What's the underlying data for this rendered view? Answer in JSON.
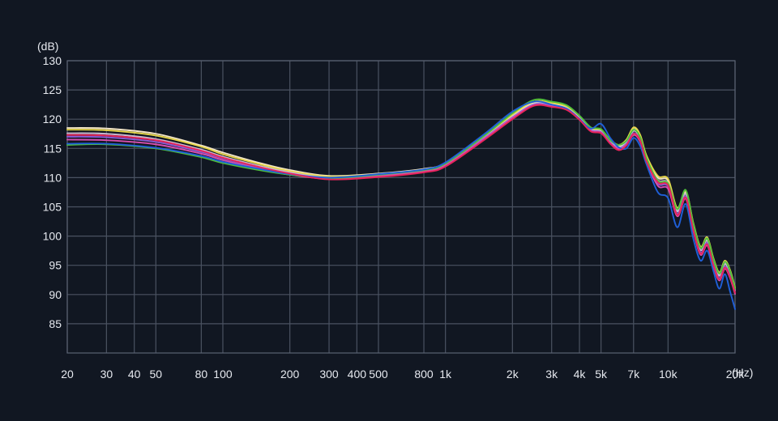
{
  "chart_data": {
    "type": "line",
    "title": "",
    "ylabel": "(dB)",
    "xlabel": "(Hz)",
    "x_scale": "log",
    "xlim": [
      20,
      20000
    ],
    "ylim": [
      80,
      130
    ],
    "grid": true,
    "y_ticks": [
      85,
      90,
      95,
      100,
      105,
      110,
      115,
      120,
      125,
      130
    ],
    "y_tick_labels": [
      "85",
      "90",
      "95",
      "100",
      "105",
      "110",
      "115",
      "120",
      "125",
      "130"
    ],
    "x_ticks": [
      20,
      30,
      40,
      50,
      80,
      100,
      200,
      300,
      400,
      500,
      800,
      1000,
      2000,
      3000,
      4000,
      5000,
      7000,
      10000,
      20000
    ],
    "x_tick_labels": [
      "20",
      "30",
      "40",
      "50",
      "80",
      "100",
      "200",
      "300",
      "400",
      "500",
      "800",
      "1k",
      "2k",
      "3k",
      "4k",
      "5k",
      "7k",
      "10k",
      "20k"
    ],
    "x": [
      20,
      30,
      50,
      80,
      100,
      150,
      200,
      300,
      500,
      800,
      1000,
      1500,
      2000,
      2500,
      3000,
      3500,
      4000,
      4500,
      5000,
      5500,
      6000,
      6500,
      7000,
      7500,
      8000,
      9000,
      10000,
      11000,
      12000,
      13000,
      14000,
      15000,
      16000,
      17000,
      18000,
      19000,
      20000
    ],
    "series": [
      {
        "color": "#f3e6c6",
        "values": [
          118.5,
          118.4,
          117.5,
          115.5,
          114.3,
          112.4,
          111.3,
          110.3,
          110.7,
          111.5,
          112.5,
          117.0,
          120.5,
          122.8,
          122.6,
          122.0,
          120.3,
          118.3,
          118.0,
          116.3,
          115.4,
          116.2,
          118.3,
          117.0,
          113.5,
          110.0,
          109.5,
          104.5,
          107.5,
          102.0,
          98.0,
          99.5,
          96.0,
          93.5,
          95.5,
          94.0,
          91.0
        ]
      },
      {
        "color": "#e8d84a",
        "values": [
          118.2,
          118.1,
          117.2,
          115.3,
          114.0,
          112.2,
          111.1,
          110.2,
          110.6,
          111.4,
          112.4,
          117.0,
          120.8,
          123.0,
          122.8,
          122.2,
          120.5,
          118.5,
          118.2,
          116.5,
          115.6,
          116.5,
          118.6,
          117.3,
          113.8,
          110.3,
          109.8,
          104.8,
          107.8,
          102.2,
          98.2,
          99.8,
          96.2,
          93.8,
          95.8,
          94.2,
          91.2
        ]
      },
      {
        "color": "#c8b8d0",
        "values": [
          117.6,
          117.5,
          116.6,
          114.8,
          113.6,
          111.9,
          110.9,
          110.0,
          110.5,
          111.3,
          112.3,
          116.9,
          120.4,
          122.6,
          122.4,
          121.9,
          120.2,
          118.2,
          117.9,
          116.1,
          115.2,
          116.0,
          118.0,
          116.7,
          113.2,
          109.6,
          109.1,
          104.2,
          107.2,
          101.6,
          97.6,
          99.2,
          95.6,
          93.2,
          95.2,
          93.6,
          90.7
        ]
      },
      {
        "color": "#8a5cd6",
        "values": [
          117.0,
          116.9,
          116.1,
          114.4,
          113.3,
          111.6,
          110.7,
          109.9,
          110.4,
          111.2,
          112.2,
          116.8,
          120.3,
          122.5,
          122.3,
          121.8,
          120.1,
          118.1,
          117.8,
          116.0,
          115.0,
          115.8,
          117.6,
          116.4,
          113.0,
          109.0,
          108.5,
          103.8,
          106.8,
          101.2,
          97.2,
          98.8,
          95.2,
          92.8,
          94.8,
          93.2,
          90.4
        ]
      },
      {
        "color": "#d64fb0",
        "values": [
          116.5,
          116.4,
          115.7,
          114.1,
          113.0,
          111.4,
          110.5,
          109.8,
          110.3,
          111.1,
          112.1,
          116.7,
          120.2,
          122.4,
          122.2,
          121.7,
          120.0,
          118.0,
          117.7,
          115.9,
          114.9,
          115.6,
          117.3,
          116.1,
          112.7,
          108.6,
          108.1,
          103.4,
          106.4,
          100.8,
          96.8,
          98.4,
          94.8,
          92.4,
          94.4,
          92.8,
          90.1
        ]
      },
      {
        "color": "#4fbf3a",
        "values": [
          115.6,
          115.7,
          115.0,
          113.5,
          112.5,
          111.2,
          110.5,
          109.9,
          110.5,
          111.3,
          112.4,
          117.2,
          121.0,
          123.3,
          123.0,
          122.4,
          120.6,
          118.6,
          118.3,
          116.4,
          115.6,
          116.3,
          118.2,
          116.9,
          113.4,
          109.5,
          109.0,
          104.6,
          107.9,
          102.0,
          98.0,
          99.6,
          96.0,
          93.6,
          95.6,
          94.0,
          91.0
        ]
      },
      {
        "color": "#1f5fd8",
        "values": [
          115.8,
          115.8,
          115.1,
          113.7,
          112.7,
          111.4,
          110.6,
          110.0,
          110.6,
          111.4,
          112.6,
          117.5,
          121.3,
          123.0,
          122.5,
          121.8,
          120.0,
          118.4,
          119.2,
          116.8,
          115.2,
          115.0,
          116.8,
          115.4,
          112.3,
          107.5,
          106.5,
          101.5,
          105.5,
          99.5,
          95.8,
          97.5,
          94.0,
          91.0,
          93.5,
          90.5,
          87.5
        ]
      },
      {
        "color": "#e8245a",
        "values": [
          117.3,
          117.2,
          116.4,
          114.6,
          113.4,
          111.7,
          110.7,
          109.7,
          110.1,
          110.9,
          111.9,
          116.5,
          120.0,
          122.3,
          122.1,
          121.6,
          119.9,
          117.9,
          117.6,
          115.8,
          114.7,
          115.5,
          117.5,
          116.3,
          112.8,
          109.2,
          108.7,
          103.6,
          106.6,
          101.0,
          97.0,
          98.6,
          95.0,
          92.6,
          94.6,
          93.0,
          90.3
        ]
      }
    ]
  }
}
